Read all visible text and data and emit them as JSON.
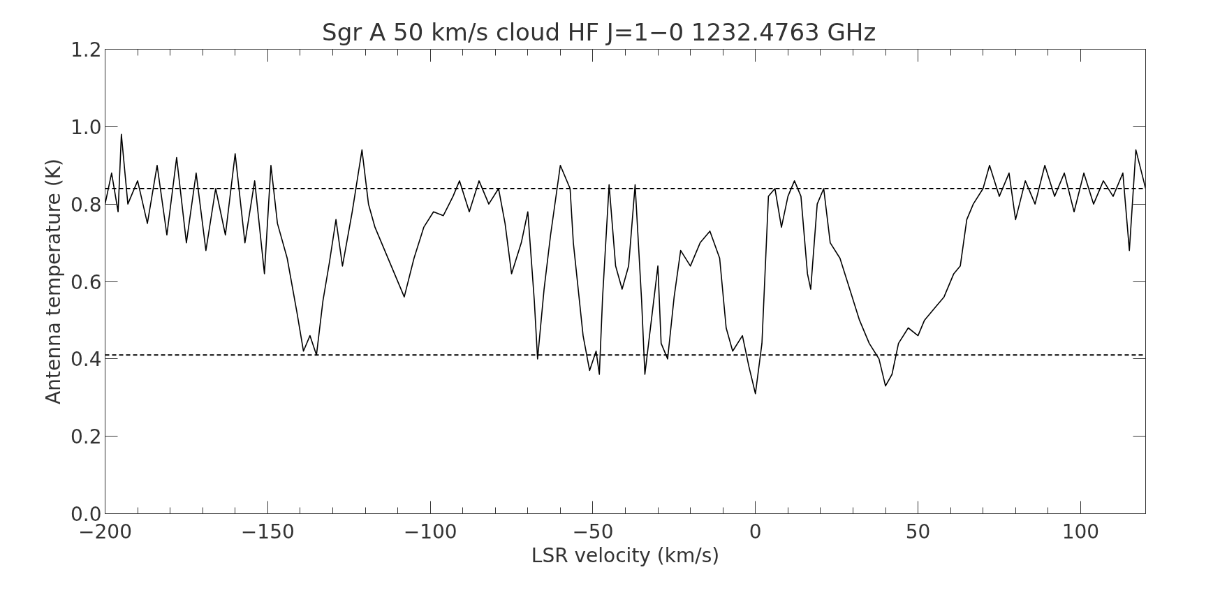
{
  "chart_data": {
    "type": "line",
    "title": "Sgr A 50 km/s cloud     HF J=1−0    1232.4763 GHz",
    "xlabel": "LSR velocity (km/s)",
    "ylabel": "Antenna temperature (K)",
    "x": [
      -200,
      -198,
      -196,
      -195,
      -193,
      -190,
      -187,
      -184,
      -181,
      -178,
      -175,
      -172,
      -169,
      -166,
      -163,
      -160,
      -157,
      -154,
      -151,
      -149,
      -147,
      -144,
      -141,
      -139,
      -137,
      -135,
      -133,
      -131,
      -129,
      -127,
      -124,
      -121,
      -119,
      -117,
      -114,
      -111,
      -108,
      -105,
      -102,
      -99,
      -96,
      -93,
      -91,
      -88,
      -85,
      -82,
      -79,
      -77,
      -75,
      -72,
      -70,
      -68,
      -67,
      -65,
      -63,
      -61,
      -60,
      -57,
      -56,
      -53,
      -51,
      -49,
      -48,
      -47,
      -45,
      -43,
      -41,
      -39,
      -37,
      -35,
      -34,
      -32,
      -30,
      -29,
      -27,
      -25,
      -23,
      -20,
      -17,
      -14,
      -11,
      -9,
      -7,
      -4,
      -2,
      0,
      2,
      4,
      6,
      8,
      10,
      12,
      14,
      16,
      17,
      19,
      21,
      23,
      26,
      29,
      32,
      35,
      38,
      40,
      42,
      44,
      47,
      50,
      52,
      55,
      58,
      61,
      63,
      65,
      67,
      70,
      72,
      75,
      78,
      80,
      83,
      86,
      89,
      92,
      95,
      98,
      101,
      104,
      107,
      110,
      113,
      115,
      117,
      120
    ],
    "series": [
      {
        "color": "#000000",
        "values": [
          0.8,
          0.88,
          0.78,
          0.98,
          0.8,
          0.86,
          0.75,
          0.9,
          0.72,
          0.92,
          0.7,
          0.88,
          0.68,
          0.84,
          0.72,
          0.93,
          0.7,
          0.86,
          0.62,
          0.9,
          0.75,
          0.66,
          0.52,
          0.42,
          0.46,
          0.41,
          0.55,
          0.65,
          0.76,
          0.64,
          0.78,
          0.94,
          0.8,
          0.74,
          0.68,
          0.62,
          0.56,
          0.66,
          0.74,
          0.78,
          0.77,
          0.82,
          0.86,
          0.78,
          0.86,
          0.8,
          0.84,
          0.75,
          0.62,
          0.7,
          0.78,
          0.55,
          0.4,
          0.58,
          0.72,
          0.84,
          0.9,
          0.84,
          0.7,
          0.46,
          0.37,
          0.42,
          0.36,
          0.56,
          0.85,
          0.64,
          0.58,
          0.64,
          0.85,
          0.55,
          0.36,
          0.5,
          0.64,
          0.44,
          0.4,
          0.56,
          0.68,
          0.64,
          0.7,
          0.73,
          0.66,
          0.48,
          0.42,
          0.46,
          0.38,
          0.31,
          0.44,
          0.82,
          0.84,
          0.74,
          0.82,
          0.86,
          0.82,
          0.62,
          0.58,
          0.8,
          0.84,
          0.7,
          0.66,
          0.58,
          0.5,
          0.44,
          0.4,
          0.33,
          0.36,
          0.44,
          0.48,
          0.46,
          0.5,
          0.53,
          0.56,
          0.62,
          0.64,
          0.76,
          0.8,
          0.84,
          0.9,
          0.82,
          0.88,
          0.76,
          0.86,
          0.8,
          0.9,
          0.82,
          0.88,
          0.78,
          0.88,
          0.8,
          0.86,
          0.82,
          0.88,
          0.68,
          0.94,
          0.84
        ]
      }
    ],
    "xlim": [
      -200,
      120
    ],
    "xticks": [
      -200,
      -150,
      -100,
      -50,
      0,
      50,
      100
    ],
    "ylim": [
      0,
      1.2
    ],
    "yticks": [
      {
        "value": 0,
        "label": "0.0"
      },
      {
        "value": 0.2,
        "label": "0.2"
      },
      {
        "value": 0.4,
        "label": "0.4"
      },
      {
        "value": 0.6,
        "label": "0.6"
      },
      {
        "value": 0.8,
        "label": "0.8"
      },
      {
        "value": 1.0,
        "label": "1.0"
      },
      {
        "value": 1.2,
        "label": "1.2"
      }
    ],
    "ref_lines": [
      {
        "axis": "y",
        "value": 0.84,
        "color": "#000000",
        "line_style": "dashed"
      },
      {
        "axis": "y",
        "value": 0.41,
        "color": "#000000",
        "line_style": "dashed"
      }
    ],
    "grid": false,
    "marker": "none",
    "line_style": "solid"
  }
}
